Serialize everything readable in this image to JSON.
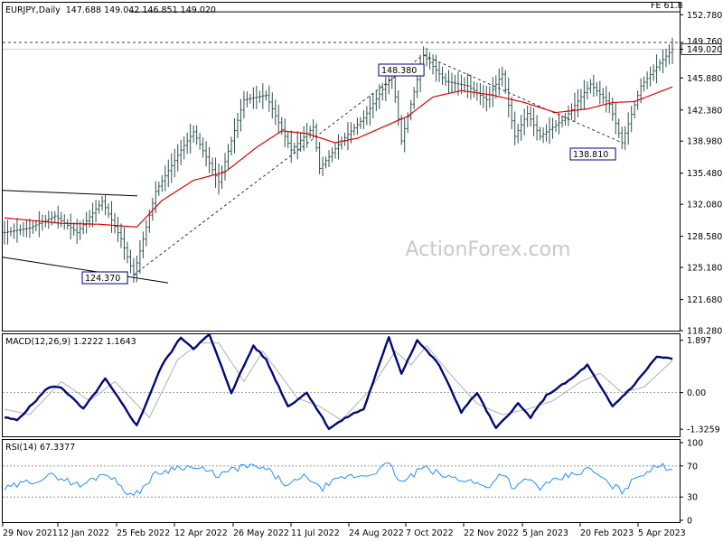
{
  "chart_data": [
    {
      "type": "ohlc",
      "title": "EURJPY,Daily",
      "ohlc_header": "147.688 149.042 146.851 149.020",
      "y_ticks": [
        "152.780",
        "149.760",
        "149.020",
        "145.880",
        "142.380",
        "138.980",
        "135.480",
        "132.080",
        "128.580",
        "125.180",
        "121.680",
        "118.280"
      ],
      "ylim": [
        118.28,
        154.0
      ],
      "x_ticks": [
        "29 Nov 2021",
        "12 Jan 2022",
        "25 Feb 2022",
        "12 Apr 2022",
        "26 May 2022",
        "11 Jul 2022",
        "24 Aug 2022",
        "7 Oct 2022",
        "22 Nov 2022",
        "5 Jan 2023",
        "20 Feb 2023",
        "5 Apr 2023"
      ],
      "price_key_points": [
        {
          "i": 0,
          "v": 129.0
        },
        {
          "i": 8,
          "v": 129.5
        },
        {
          "i": 16,
          "v": 130.8
        },
        {
          "i": 23,
          "v": 129.0
        },
        {
          "i": 31,
          "v": 132.4
        },
        {
          "i": 37,
          "v": 128.3
        },
        {
          "i": 41,
          "v": 124.37
        },
        {
          "i": 48,
          "v": 133.5
        },
        {
          "i": 56,
          "v": 138.0
        },
        {
          "i": 60,
          "v": 140.0
        },
        {
          "i": 68,
          "v": 134.5
        },
        {
          "i": 76,
          "v": 143.5
        },
        {
          "i": 83,
          "v": 144.0
        },
        {
          "i": 91,
          "v": 138.0
        },
        {
          "i": 98,
          "v": 140.5
        },
        {
          "i": 100,
          "v": 136.0
        },
        {
          "i": 107,
          "v": 139.0
        },
        {
          "i": 114,
          "v": 141.5
        },
        {
          "i": 123,
          "v": 146.2
        },
        {
          "i": 126,
          "v": 139.0
        },
        {
          "i": 133,
          "v": 148.38
        },
        {
          "i": 140,
          "v": 145.5
        },
        {
          "i": 147,
          "v": 145.0
        },
        {
          "i": 153,
          "v": 143.5
        },
        {
          "i": 158,
          "v": 146.3
        },
        {
          "i": 162,
          "v": 139.5
        },
        {
          "i": 166,
          "v": 142.0
        },
        {
          "i": 170,
          "v": 139.5
        },
        {
          "i": 178,
          "v": 141.5
        },
        {
          "i": 186,
          "v": 145.2
        },
        {
          "i": 192,
          "v": 143.0
        },
        {
          "i": 196,
          "v": 138.81
        },
        {
          "i": 202,
          "v": 145.0
        },
        {
          "i": 208,
          "v": 147.5
        },
        {
          "i": 212,
          "v": 149.02
        }
      ],
      "moving_average_key_points": [
        {
          "i": 0,
          "v": 130.6
        },
        {
          "i": 18,
          "v": 130.0
        },
        {
          "i": 30,
          "v": 129.9
        },
        {
          "i": 42,
          "v": 129.6
        },
        {
          "i": 50,
          "v": 132.5
        },
        {
          "i": 60,
          "v": 134.7
        },
        {
          "i": 70,
          "v": 135.6
        },
        {
          "i": 80,
          "v": 138.3
        },
        {
          "i": 88,
          "v": 140.1
        },
        {
          "i": 96,
          "v": 139.8
        },
        {
          "i": 105,
          "v": 138.8
        },
        {
          "i": 112,
          "v": 139.3
        },
        {
          "i": 122,
          "v": 140.8
        },
        {
          "i": 128,
          "v": 141.7
        },
        {
          "i": 136,
          "v": 143.8
        },
        {
          "i": 145,
          "v": 144.5
        },
        {
          "i": 155,
          "v": 144.0
        },
        {
          "i": 165,
          "v": 143.2
        },
        {
          "i": 175,
          "v": 142.1
        },
        {
          "i": 185,
          "v": 142.5
        },
        {
          "i": 193,
          "v": 143.2
        },
        {
          "i": 200,
          "v": 143.3
        },
        {
          "i": 212,
          "v": 144.9
        }
      ],
      "bar_count": 213,
      "annotations": [
        "124.370",
        "148.380",
        "138.810",
        "FE 61.8"
      ],
      "levels": {
        "fe": 153.1,
        "horizontal_dashed": 149.76,
        "current": 149.02
      },
      "watermark": "ActionForex.com"
    },
    {
      "type": "line",
      "title": "MACD(12,26,9) 1.2222 1.1643",
      "y_ticks": [
        "1.897",
        "0.00",
        "-1.3259"
      ],
      "ylim": [
        -1.55,
        2.05
      ],
      "macd_key_points": [
        {
          "i": 0,
          "v": -0.9
        },
        {
          "i": 4,
          "v": -1.0
        },
        {
          "i": 14,
          "v": 0.2
        },
        {
          "i": 18,
          "v": 0.2
        },
        {
          "i": 25,
          "v": -0.6
        },
        {
          "i": 32,
          "v": 0.5
        },
        {
          "i": 42,
          "v": -1.2
        },
        {
          "i": 50,
          "v": 1.0
        },
        {
          "i": 56,
          "v": 2.0
        },
        {
          "i": 60,
          "v": 1.6
        },
        {
          "i": 65,
          "v": 2.1
        },
        {
          "i": 72,
          "v": 0.0
        },
        {
          "i": 79,
          "v": 1.7
        },
        {
          "i": 83,
          "v": 1.2
        },
        {
          "i": 90,
          "v": -0.5
        },
        {
          "i": 96,
          "v": 0.0
        },
        {
          "i": 103,
          "v": -1.3
        },
        {
          "i": 110,
          "v": -0.8
        },
        {
          "i": 114,
          "v": -0.6
        },
        {
          "i": 122,
          "v": 2.0
        },
        {
          "i": 126,
          "v": 0.7
        },
        {
          "i": 131,
          "v": 1.9
        },
        {
          "i": 138,
          "v": 1.0
        },
        {
          "i": 145,
          "v": -0.7
        },
        {
          "i": 150,
          "v": 0.0
        },
        {
          "i": 156,
          "v": -1.3
        },
        {
          "i": 163,
          "v": -0.4
        },
        {
          "i": 167,
          "v": -0.9
        },
        {
          "i": 172,
          "v": -0.1
        },
        {
          "i": 180,
          "v": 0.5
        },
        {
          "i": 185,
          "v": 1.0
        },
        {
          "i": 193,
          "v": -0.5
        },
        {
          "i": 200,
          "v": 0.3
        },
        {
          "i": 207,
          "v": 1.3
        },
        {
          "i": 212,
          "v": 1.2222
        }
      ],
      "signal_key_points": [
        {
          "i": 0,
          "v": -0.6
        },
        {
          "i": 8,
          "v": -0.8
        },
        {
          "i": 18,
          "v": 0.4
        },
        {
          "i": 27,
          "v": -0.3
        },
        {
          "i": 35,
          "v": 0.4
        },
        {
          "i": 46,
          "v": -0.9
        },
        {
          "i": 55,
          "v": 1.2
        },
        {
          "i": 62,
          "v": 1.8
        },
        {
          "i": 68,
          "v": 1.8
        },
        {
          "i": 76,
          "v": 0.4
        },
        {
          "i": 82,
          "v": 1.5
        },
        {
          "i": 93,
          "v": -0.2
        },
        {
          "i": 100,
          "v": -0.5
        },
        {
          "i": 107,
          "v": -1.0
        },
        {
          "i": 116,
          "v": 0.1
        },
        {
          "i": 124,
          "v": 1.5
        },
        {
          "i": 129,
          "v": 1.0
        },
        {
          "i": 134,
          "v": 1.7
        },
        {
          "i": 142,
          "v": 0.6
        },
        {
          "i": 150,
          "v": -0.4
        },
        {
          "i": 158,
          "v": -0.8
        },
        {
          "i": 166,
          "v": -0.6
        },
        {
          "i": 174,
          "v": -0.3
        },
        {
          "i": 183,
          "v": 0.4
        },
        {
          "i": 189,
          "v": 0.7
        },
        {
          "i": 196,
          "v": 0.0
        },
        {
          "i": 203,
          "v": 0.2
        },
        {
          "i": 212,
          "v": 1.1643
        }
      ]
    },
    {
      "type": "line",
      "title": "RSI(14) 67.3377",
      "y_ticks": [
        "100",
        "70",
        "30",
        "0"
      ],
      "ylim": [
        0,
        100
      ],
      "rsi_key_points": [
        {
          "i": 0,
          "v": 40
        },
        {
          "i": 8,
          "v": 50
        },
        {
          "i": 16,
          "v": 58
        },
        {
          "i": 24,
          "v": 44
        },
        {
          "i": 32,
          "v": 62
        },
        {
          "i": 41,
          "v": 30
        },
        {
          "i": 48,
          "v": 60
        },
        {
          "i": 56,
          "v": 70
        },
        {
          "i": 62,
          "v": 66
        },
        {
          "i": 68,
          "v": 58
        },
        {
          "i": 76,
          "v": 70
        },
        {
          "i": 83,
          "v": 66
        },
        {
          "i": 90,
          "v": 44
        },
        {
          "i": 96,
          "v": 58
        },
        {
          "i": 100,
          "v": 40
        },
        {
          "i": 108,
          "v": 56
        },
        {
          "i": 115,
          "v": 58
        },
        {
          "i": 122,
          "v": 72
        },
        {
          "i": 126,
          "v": 48
        },
        {
          "i": 133,
          "v": 68
        },
        {
          "i": 140,
          "v": 56
        },
        {
          "i": 147,
          "v": 52
        },
        {
          "i": 153,
          "v": 42
        },
        {
          "i": 158,
          "v": 62
        },
        {
          "i": 162,
          "v": 40
        },
        {
          "i": 166,
          "v": 54
        },
        {
          "i": 170,
          "v": 42
        },
        {
          "i": 178,
          "v": 56
        },
        {
          "i": 186,
          "v": 66
        },
        {
          "i": 192,
          "v": 46
        },
        {
          "i": 196,
          "v": 38
        },
        {
          "i": 202,
          "v": 60
        },
        {
          "i": 208,
          "v": 70
        },
        {
          "i": 212,
          "v": 67.3377
        }
      ]
    }
  ]
}
